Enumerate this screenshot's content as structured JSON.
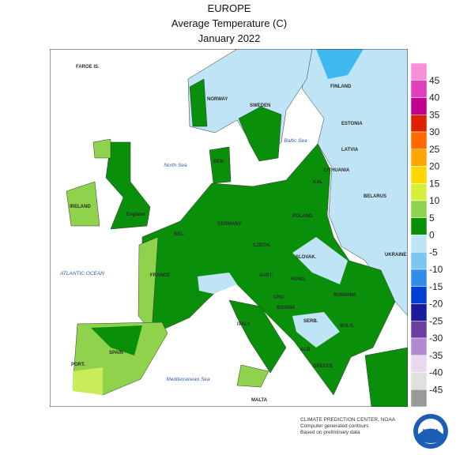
{
  "header": {
    "region": "EUROPE",
    "title": "Average Temperature (C)",
    "date": "January 2022"
  },
  "labels": [
    "FAROE IS.",
    "NORWAY",
    "SWEDEN",
    "FINLAND",
    "ESTONIA",
    "LATVIA",
    "LITHUANIA",
    "BELARUS",
    "DEN.",
    "IRELAND",
    "England",
    "BEL.",
    "GERMANY",
    "POLAND",
    "CZECH.",
    "SLOVAK.",
    "UKRAINE",
    "FRANCE",
    "AUST.",
    "HUNG.",
    "ROMANIA",
    "CRO",
    "BOSNIA",
    "SERB.",
    "BULG.",
    "SPAIN",
    "PORT.",
    "ALB.",
    "GREECE",
    "MALTA",
    "KAL",
    "ITALY"
  ],
  "seas": [
    "North Sea",
    "Baltic Sea",
    "ATLANTIC OCEAN",
    "Mediterranean Sea"
  ],
  "legend": {
    "levels": [
      45,
      40,
      35,
      30,
      25,
      20,
      15,
      10,
      5,
      0,
      -5,
      -10,
      -15,
      -20,
      -25,
      -30,
      -35,
      -40,
      -45
    ],
    "colors": [
      "#f48fd8",
      "#e040bc",
      "#c0008c",
      "#dd2200",
      "#ff6a00",
      "#ffa500",
      "#ffd700",
      "#d6ef3a",
      "#8fd34c",
      "#0a8f0a",
      "#bfe4f6",
      "#7cc6f2",
      "#2f8fe8",
      "#0040d0",
      "#1a1a9a",
      "#6a3fa0",
      "#b08ad0",
      "#ecd8ee",
      "#e0e0e0",
      "#999999"
    ]
  },
  "footer": {
    "lines": [
      "CLIMATE PREDICTION CENTER, NOAA",
      "Computer generated contours",
      "Based on preliminary data"
    ],
    "logo": "NOAA"
  }
}
